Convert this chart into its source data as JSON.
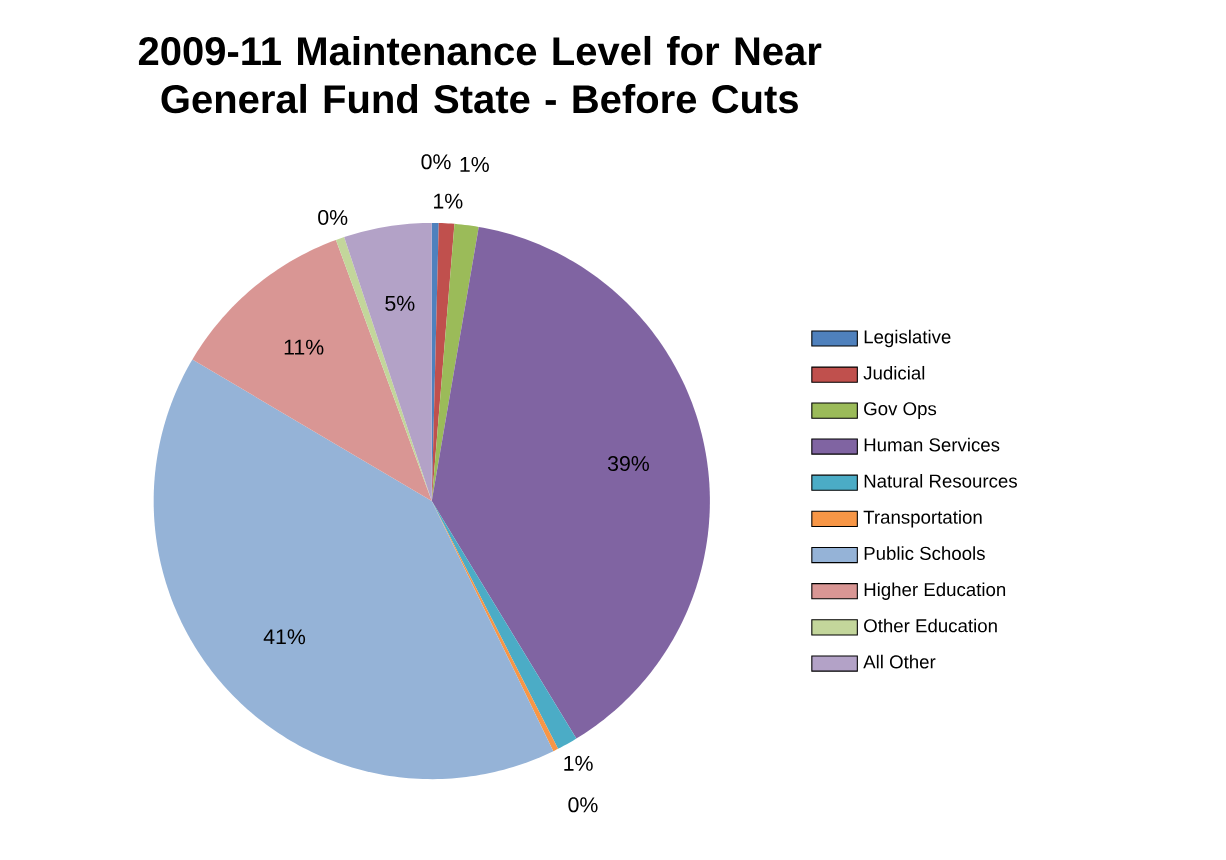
{
  "chart_data": {
    "type": "pie",
    "title": "2009-11 Maintenance Level for Near General Fund State - Before Cuts",
    "categories": [
      "Legislative",
      "Judicial",
      "Gov Ops",
      "Human Services",
      "Natural Resources",
      "Transportation",
      "Public Schools",
      "Higher Education",
      "Other Education",
      "All Other"
    ],
    "values": [
      0.4,
      0.9,
      1.4,
      38.6,
      1.2,
      0.3,
      40.7,
      10.9,
      0.5,
      5.1
    ],
    "value_labels": [
      "0%",
      "1%",
      "1%",
      "39%",
      "1%",
      "0%",
      "41%",
      "11%",
      "0%",
      "5%"
    ],
    "colors": [
      "#4f81bd",
      "#c0504d",
      "#9bbb59",
      "#8064a2",
      "#4bacc6",
      "#f79646",
      "#95b3d7",
      "#d99694",
      "#c3d69b",
      "#b3a2c7"
    ],
    "legend": "right"
  }
}
